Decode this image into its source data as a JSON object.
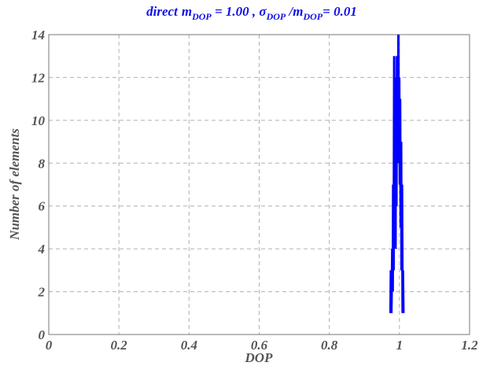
{
  "chart_data": {
    "type": "line",
    "title": {
      "direct": "direct",
      "m1": "m",
      "sub1": "DOP",
      "eq1": " = 1.00 , ",
      "sigma": "σ",
      "sub2": "DOP",
      "slash": " /m",
      "sub3": "DOP",
      "eq2": "= 0.01"
    },
    "xlabel": "DOP",
    "ylabel": "Number of elements",
    "xlim": [
      0,
      1.2
    ],
    "ylim": [
      0,
      14
    ],
    "xticks": [
      0,
      0.2,
      0.4,
      0.6,
      0.8,
      1,
      1.2
    ],
    "xtick_labels": [
      "0",
      "0.2",
      "0.4",
      "0.6",
      "0.8",
      "1",
      "1.2"
    ],
    "yticks": [
      0,
      2,
      4,
      6,
      8,
      10,
      12,
      14
    ],
    "ytick_labels": [
      "0",
      "2",
      "4",
      "6",
      "8",
      "10",
      "12",
      "14"
    ],
    "grid": true,
    "series": [
      {
        "color": "#0000ff",
        "x": [
          0.9745,
          0.9755,
          0.977,
          0.978,
          0.9795,
          0.981,
          0.982,
          0.9835,
          0.985,
          0.986,
          0.9875,
          0.989,
          0.99,
          0.9915,
          0.993,
          0.994,
          0.9955,
          0.997,
          0.998,
          0.9995,
          1.001,
          1.002,
          1.0035,
          1.005,
          1.006,
          1.0075,
          1.009,
          1.01,
          1.0115
        ],
        "y": [
          1,
          3,
          1,
          2,
          4,
          2,
          7,
          3,
          13,
          5,
          9,
          4,
          12,
          6,
          13,
          8,
          10,
          14,
          9,
          12,
          7,
          11,
          5,
          9,
          3,
          7,
          1,
          3,
          1
        ]
      }
    ]
  }
}
